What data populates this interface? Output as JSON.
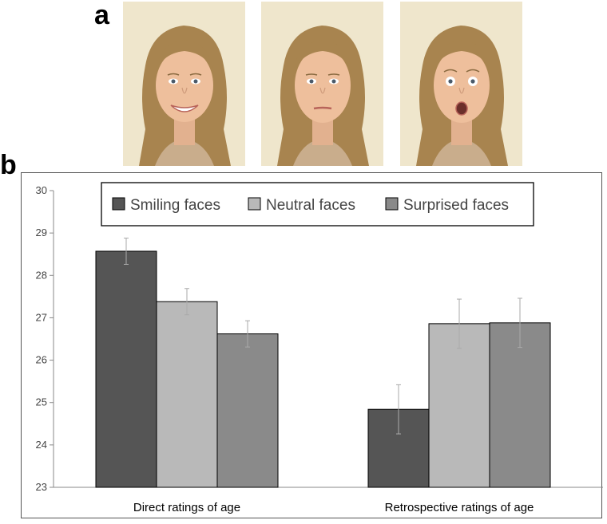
{
  "panels": {
    "a": "a",
    "b": "b"
  },
  "photos": [
    {
      "expression": "smiling"
    },
    {
      "expression": "neutral"
    },
    {
      "expression": "surprised"
    }
  ],
  "colors": {
    "smiling": "#555555",
    "neutral": "#b9b9b9",
    "surprised": "#8a8a8a",
    "photo_bg": "#efe6cc"
  },
  "chart_data": {
    "type": "bar",
    "categories": [
      "Direct ratings of age",
      "Retrospective ratings of age"
    ],
    "series": [
      {
        "name": "Smiling faces",
        "values": [
          28.57,
          24.84
        ],
        "errors": [
          0.31,
          0.58
        ]
      },
      {
        "name": "Neutral faces",
        "values": [
          27.38,
          26.86
        ],
        "errors": [
          0.31,
          0.58
        ]
      },
      {
        "name": "Surprised faces",
        "values": [
          26.62,
          26.88
        ],
        "errors": [
          0.31,
          0.58
        ]
      }
    ],
    "ylim": [
      23,
      30
    ],
    "yticks": [
      "23",
      "24",
      "25",
      "26",
      "27",
      "28",
      "29",
      "30"
    ],
    "legend_position": "top-center",
    "grid": false
  }
}
